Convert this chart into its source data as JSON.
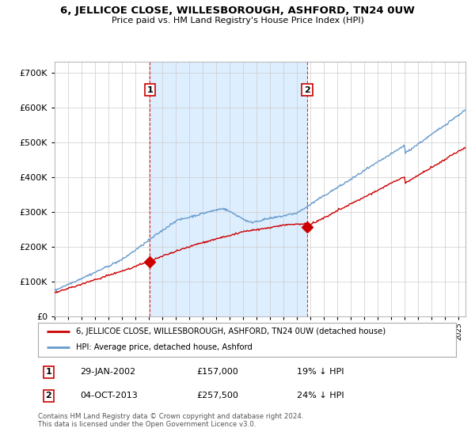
{
  "title": "6, JELLICOE CLOSE, WILLESBOROUGH, ASHFORD, TN24 0UW",
  "subtitle": "Price paid vs. HM Land Registry's House Price Index (HPI)",
  "ylim": [
    0,
    730000
  ],
  "xlim_start": 1995.0,
  "xlim_end": 2025.5,
  "sale1_x": 2002.08,
  "sale1_y": 157000,
  "sale1_label": "1",
  "sale1_date": "29-JAN-2002",
  "sale1_price": "£157,000",
  "sale1_hpi": "19% ↓ HPI",
  "sale2_x": 2013.75,
  "sale2_y": 257500,
  "sale2_label": "2",
  "sale2_date": "04-OCT-2013",
  "sale2_price": "£257,500",
  "sale2_hpi": "24% ↓ HPI",
  "legend_property": "6, JELLICOE CLOSE, WILLESBOROUGH, ASHFORD, TN24 0UW (detached house)",
  "legend_hpi": "HPI: Average price, detached house, Ashford",
  "footer": "Contains HM Land Registry data © Crown copyright and database right 2024.\nThis data is licensed under the Open Government Licence v3.0.",
  "property_color": "#cc0000",
  "hpi_color": "#6699cc",
  "shade_color": "#ddeeff",
  "background_color": "#ffffff",
  "grid_color": "#cccccc"
}
